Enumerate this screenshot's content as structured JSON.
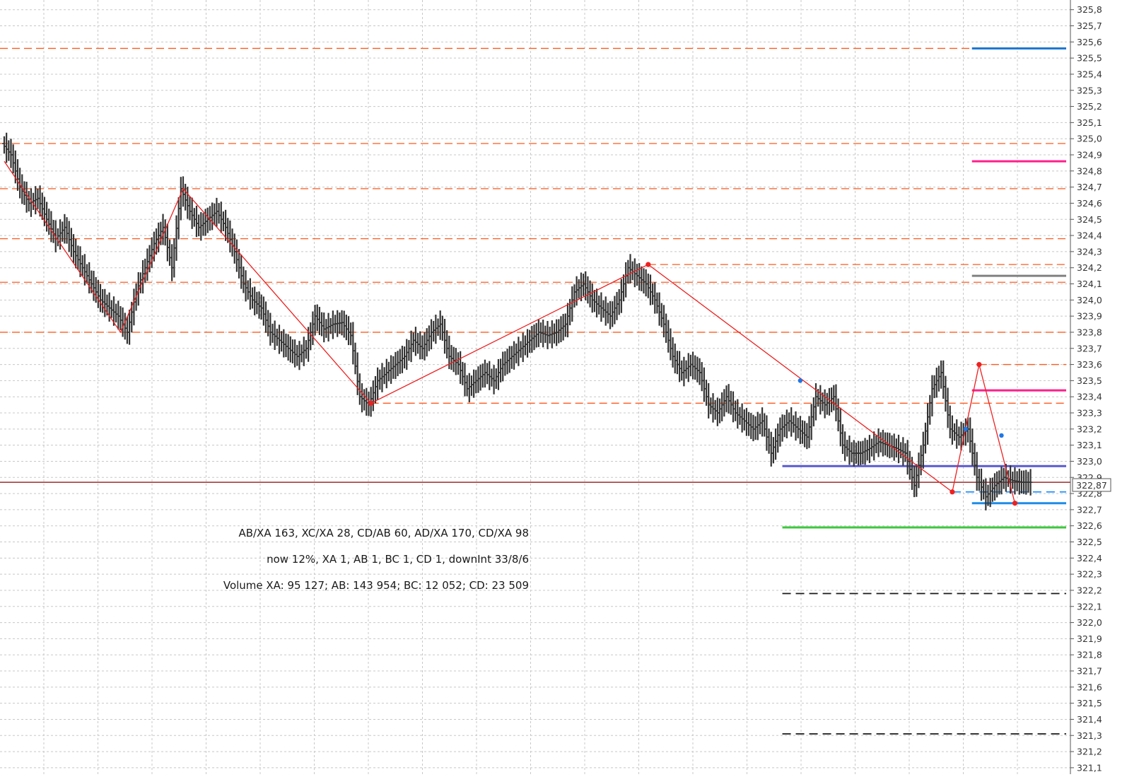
{
  "chart_data": {
    "type": "line",
    "title": "",
    "xlabel": "",
    "ylabel": "",
    "ylim": [
      321.06,
      325.86
    ],
    "y_ticks": [
      "325,8",
      "325,7",
      "325,6",
      "325,5",
      "325,4",
      "325,3",
      "325,2",
      "325,1",
      "325,0",
      "324,9",
      "324,8",
      "324,7",
      "324,6",
      "324,5",
      "324,4",
      "324,3",
      "324,2",
      "324,1",
      "324,0",
      "323,9",
      "323,8",
      "323,7",
      "323,6",
      "323,5",
      "323,4",
      "323,3",
      "323,2",
      "323,1",
      "323,0",
      "322,9",
      "322,8",
      "322,7",
      "322,6",
      "322,5",
      "322,4",
      "322,3",
      "322,2",
      "322,1",
      "322,0",
      "321,9",
      "321,8",
      "321,7",
      "321,6",
      "321,5",
      "321,4",
      "321,3",
      "321,2",
      "321,1"
    ],
    "grid": true,
    "current_price": {
      "value": 322.87,
      "label": "322,87",
      "color": "#8b0000"
    },
    "price_series": {
      "name": "",
      "color": "#333333",
      "points": [
        [
          0,
          324.97
        ],
        [
          1,
          324.9
        ],
        [
          2,
          324.7
        ],
        [
          3,
          324.6
        ],
        [
          4,
          324.63
        ],
        [
          5,
          324.5
        ],
        [
          6,
          324.38
        ],
        [
          7,
          324.45
        ],
        [
          8,
          324.3
        ],
        [
          9,
          324.2
        ],
        [
          10,
          324.1
        ],
        [
          11,
          324.0
        ],
        [
          12,
          323.95
        ],
        [
          13,
          323.9
        ],
        [
          14,
          323.8
        ],
        [
          15,
          324.05
        ],
        [
          16,
          324.2
        ],
        [
          17,
          324.35
        ],
        [
          18,
          324.45
        ],
        [
          19,
          324.2
        ],
        [
          20,
          324.69
        ],
        [
          21,
          324.55
        ],
        [
          22,
          324.45
        ],
        [
          23,
          324.5
        ],
        [
          24,
          324.55
        ],
        [
          25,
          324.45
        ],
        [
          26,
          324.3
        ],
        [
          27,
          324.1
        ],
        [
          28,
          324.0
        ],
        [
          29,
          323.95
        ],
        [
          30,
          323.8
        ],
        [
          31,
          323.75
        ],
        [
          32,
          323.7
        ],
        [
          33,
          323.65
        ],
        [
          34,
          323.7
        ],
        [
          35,
          323.9
        ],
        [
          36,
          323.82
        ],
        [
          37,
          323.85
        ],
        [
          38,
          323.86
        ],
        [
          39,
          323.78
        ],
        [
          40,
          323.4
        ],
        [
          41,
          323.35
        ],
        [
          42,
          323.5
        ],
        [
          43,
          323.55
        ],
        [
          44,
          323.6
        ],
        [
          45,
          323.65
        ],
        [
          46,
          323.75
        ],
        [
          47,
          323.7
        ],
        [
          48,
          323.8
        ],
        [
          49,
          323.85
        ],
        [
          50,
          323.65
        ],
        [
          51,
          323.6
        ],
        [
          52,
          323.45
        ],
        [
          53,
          323.5
        ],
        [
          54,
          323.55
        ],
        [
          55,
          323.5
        ],
        [
          56,
          323.6
        ],
        [
          57,
          323.65
        ],
        [
          58,
          323.7
        ],
        [
          59,
          323.75
        ],
        [
          60,
          323.8
        ],
        [
          61,
          323.78
        ],
        [
          62,
          323.8
        ],
        [
          63,
          323.85
        ],
        [
          64,
          324.05
        ],
        [
          65,
          324.1
        ],
        [
          66,
          324.0
        ],
        [
          67,
          323.95
        ],
        [
          68,
          323.9
        ],
        [
          69,
          324.0
        ],
        [
          70,
          324.2
        ],
        [
          71,
          324.15
        ],
        [
          72,
          324.1
        ],
        [
          73,
          324.0
        ],
        [
          74,
          323.85
        ],
        [
          75,
          323.65
        ],
        [
          76,
          323.55
        ],
        [
          77,
          323.6
        ],
        [
          78,
          323.55
        ],
        [
          79,
          323.35
        ],
        [
          80,
          323.3
        ],
        [
          81,
          323.4
        ],
        [
          82,
          323.3
        ],
        [
          83,
          323.25
        ],
        [
          84,
          323.2
        ],
        [
          85,
          323.25
        ],
        [
          86,
          323.05
        ],
        [
          87,
          323.2
        ],
        [
          88,
          323.25
        ],
        [
          89,
          323.2
        ],
        [
          90,
          323.15
        ],
        [
          91,
          323.4
        ],
        [
          92,
          323.35
        ],
        [
          93,
          323.4
        ],
        [
          94,
          323.1
        ],
        [
          95,
          323.05
        ],
        [
          96,
          323.05
        ],
        [
          97,
          323.08
        ],
        [
          98,
          323.12
        ],
        [
          99,
          323.1
        ],
        [
          100,
          323.08
        ],
        [
          101,
          323.05
        ],
        [
          102,
          322.85
        ],
        [
          103,
          323.1
        ],
        [
          104,
          323.45
        ],
        [
          105,
          323.55
        ],
        [
          106,
          323.2
        ],
        [
          107,
          323.15
        ],
        [
          108,
          323.2
        ],
        [
          109,
          322.9
        ],
        [
          110,
          322.78
        ],
        [
          111,
          322.85
        ],
        [
          112,
          322.9
        ],
        [
          113,
          322.88
        ],
        [
          114,
          322.87
        ]
      ]
    },
    "xabcd_pattern": {
      "color": "#ee2020",
      "points": [
        [
          0,
          324.86
        ],
        [
          13,
          323.8
        ],
        [
          20,
          324.69
        ],
        [
          41,
          323.36
        ],
        [
          72,
          324.22
        ],
        [
          106,
          322.81
        ],
        [
          109,
          323.6
        ],
        [
          113,
          322.74
        ]
      ],
      "red_markers": [
        [
          41,
          323.36
        ],
        [
          72,
          324.22
        ],
        [
          106,
          322.81
        ],
        [
          109,
          323.6
        ],
        [
          113,
          322.74
        ]
      ],
      "blue_markers": [
        [
          89,
          323.5
        ],
        [
          107.5,
          323.2
        ],
        [
          111.5,
          323.16
        ]
      ]
    },
    "dashed_levels": {
      "color": "#ff5a1e",
      "full_width": [
        325.56,
        324.97,
        324.69,
        324.38,
        324.11,
        323.8
      ],
      "from_point": [
        [
          72,
          324.22
        ],
        [
          41,
          323.36
        ],
        [
          109,
          323.6
        ]
      ]
    },
    "projection_levels": [
      {
        "value": 325.56,
        "color": "#1e78d2",
        "style": "solid",
        "x_start": 108.2
      },
      {
        "value": 324.86,
        "color": "#ff1f8c",
        "style": "solid",
        "x_start": 108.2
      },
      {
        "value": 324.15,
        "color": "#808080",
        "style": "solid",
        "x_start": 108.2
      },
      {
        "value": 323.44,
        "color": "#ff1f8c",
        "style": "solid",
        "x_start": 108.2
      },
      {
        "value": 322.97,
        "color": "#5a5ad2",
        "style": "solid",
        "x_start": 87
      },
      {
        "value": 322.81,
        "color": "#1e90ff",
        "style": "dashed",
        "x_start": 106
      },
      {
        "value": 322.74,
        "color": "#1e8ce6",
        "style": "solid",
        "x_start": 108.2
      },
      {
        "value": 322.59,
        "color": "#3cc83c",
        "style": "solid",
        "x_start": 87
      },
      {
        "value": 322.18,
        "color": "#1a1a1a",
        "style": "dashed",
        "x_start": 87
      },
      {
        "value": 321.31,
        "color": "#1a1a1a",
        "style": "dashed",
        "x_start": 87
      }
    ]
  },
  "annotations": {
    "ratios": "AB/XA 163, XC/XA 28, CD/AB 60, AD/XA 170, CD/XA 98",
    "progress": "now 12%, XA 1, AB 1, BC 1, CD 1, downInt 33/8/6",
    "volume": "Volume XA: 95 127; AB: 143 954; BC: 12 052; CD: 23 509"
  }
}
